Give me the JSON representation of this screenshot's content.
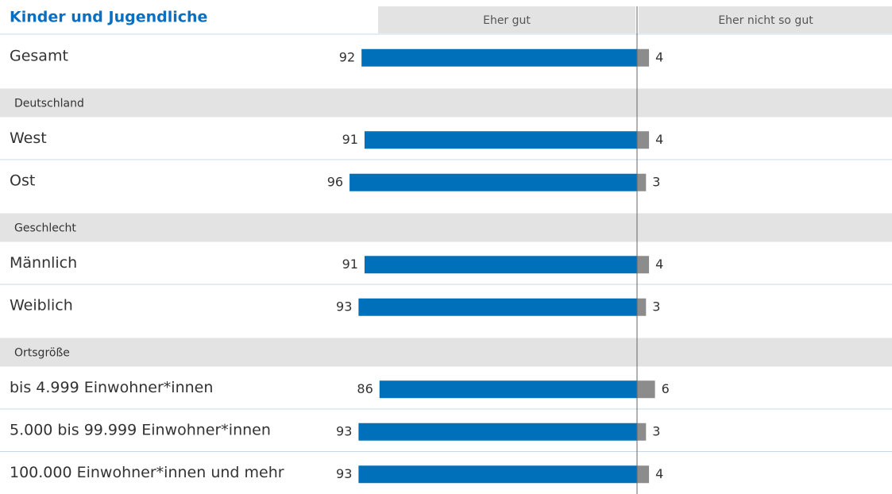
{
  "chart_data": {
    "type": "bar",
    "title": "Kinder und Jugendliche",
    "categories": [
      "Gesamt",
      "Deutschland",
      "West",
      "Ost",
      "Geschlecht",
      "Männlich",
      "Weiblich",
      "Ortsgröße",
      "bis 4.999 Einwohner*innen",
      "5.000 bis 99.999 Einwohner*innen",
      "100.000 Einwohner*innen und mehr"
    ],
    "series": [
      {
        "name": "Eher gut",
        "color": "#0070ba",
        "values": [
          92,
          null,
          91,
          96,
          null,
          91,
          93,
          null,
          86,
          93,
          93
        ]
      },
      {
        "name": "Eher nicht so gut",
        "color": "#8c8c8c",
        "values": [
          4,
          null,
          4,
          3,
          null,
          4,
          3,
          null,
          6,
          3,
          4
        ]
      }
    ]
  }
}
